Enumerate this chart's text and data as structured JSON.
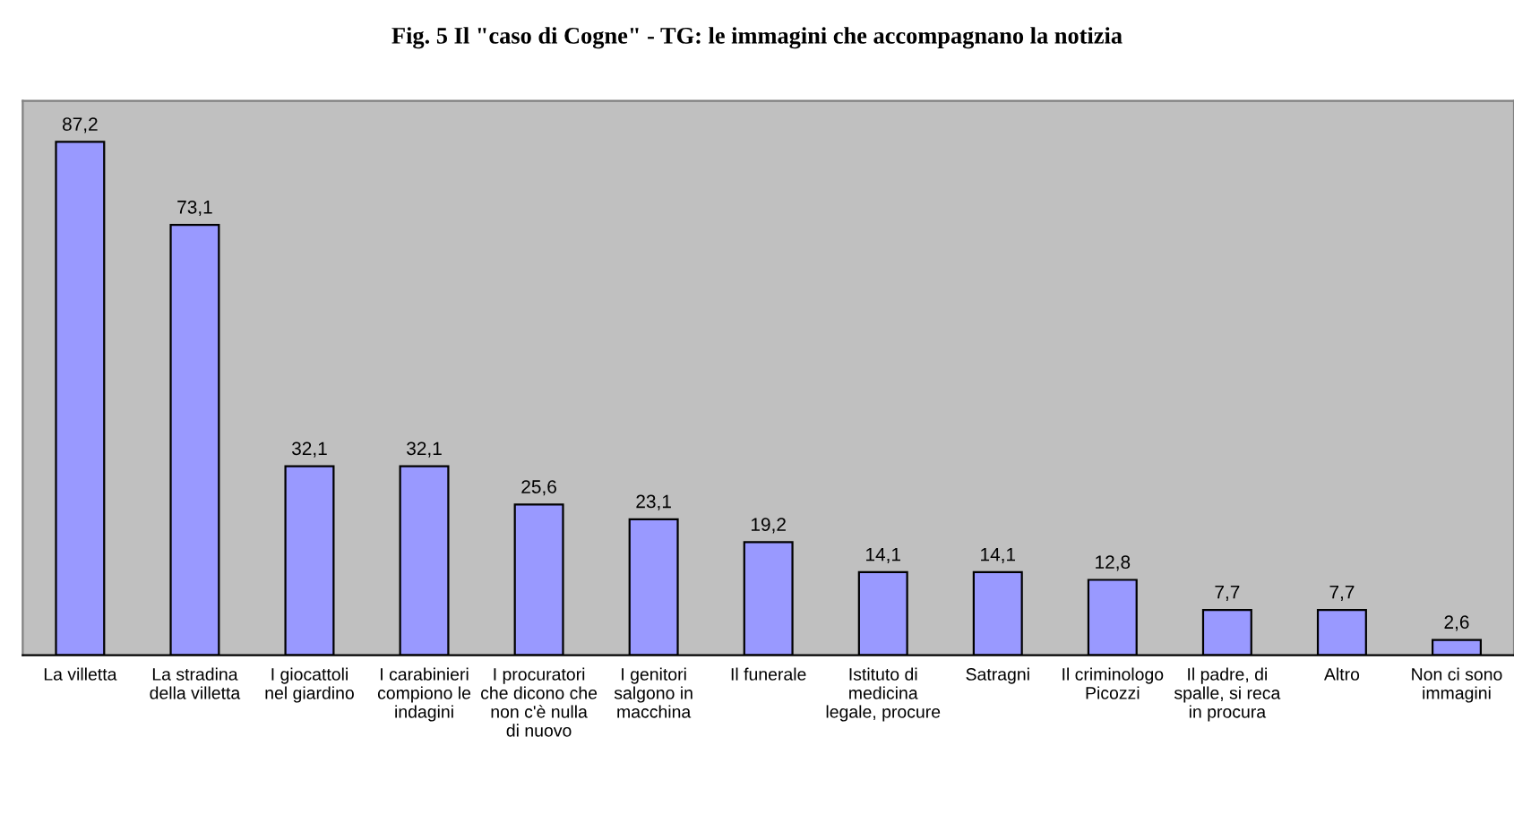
{
  "chart_data": {
    "type": "bar",
    "title": "Fig. 5 Il \"caso di Cogne\" - TG: le immagini che accompagnano la notizia",
    "categories": [
      "La villetta",
      "La stradina della villetta",
      "I giocattoli nel giardino",
      "I carabinieri compiono le indagini",
      "I procuratori che dicono che non c'è nulla di nuovo",
      "I genitori salgono in macchina",
      "Il funerale",
      "Istituto di medicina legale, procure",
      "Satragni",
      "Il criminologo Picozzi",
      "Il padre, di spalle, si reca in procura",
      "Altro",
      "Non ci sono immagini"
    ],
    "values": [
      87.2,
      73.1,
      32.1,
      32.1,
      25.6,
      23.1,
      19.2,
      14.1,
      14.1,
      12.8,
      7.7,
      7.7,
      2.6
    ],
    "value_labels": [
      "87,2",
      "73,1",
      "32,1",
      "32,1",
      "25,6",
      "23,1",
      "19,2",
      "14,1",
      "14,1",
      "12,8",
      "7,7",
      "7,7",
      "2,6"
    ],
    "color": "#9999ff",
    "grid": false,
    "legend": false
  }
}
